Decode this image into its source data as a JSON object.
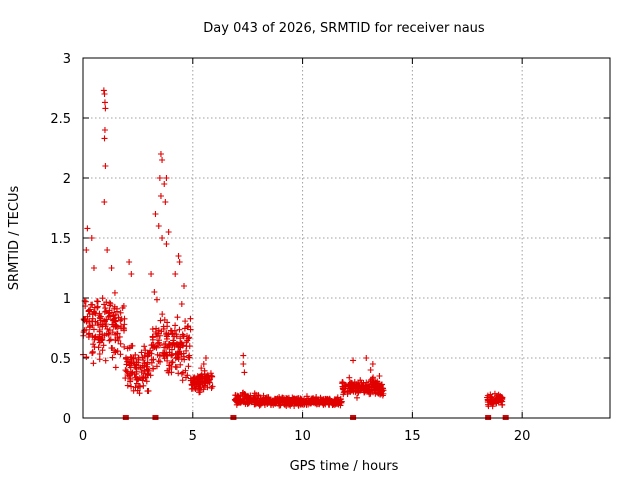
{
  "chart_data": {
    "type": "scatter",
    "title": "Day 043 of 2026, SRMTID for receiver naus",
    "xlabel": "GPS time / hours",
    "ylabel": "SRMTID / TECUs",
    "xlim": [
      0,
      24
    ],
    "ylim": [
      0,
      3
    ],
    "xticks": [
      "0",
      "5",
      "10",
      "15",
      "20"
    ],
    "yticks": [
      "0",
      "0.5",
      "1",
      "1.5",
      "2",
      "2.5",
      "3"
    ],
    "grid": true,
    "marker": "plus",
    "color": "#e00000",
    "segments": [
      {
        "x0": 0.0,
        "x1": 1.9,
        "base": 0.75,
        "spread": 0.4
      },
      {
        "x0": 1.9,
        "x1": 3.1,
        "base": 0.42,
        "spread": 0.25
      },
      {
        "x0": 3.1,
        "x1": 4.9,
        "base": 0.6,
        "spread": 0.4
      },
      {
        "x0": 4.9,
        "x1": 5.9,
        "base": 0.3,
        "spread": 0.12
      },
      {
        "x0": 6.9,
        "x1": 8.0,
        "base": 0.16,
        "spread": 0.07
      },
      {
        "x0": 8.0,
        "x1": 11.8,
        "base": 0.14,
        "spread": 0.05
      },
      {
        "x0": 11.8,
        "x1": 13.7,
        "base": 0.25,
        "spread": 0.1
      },
      {
        "x0": 18.4,
        "x1": 19.1,
        "base": 0.15,
        "spread": 0.07
      }
    ],
    "spikes": [
      {
        "x": 0.95,
        "y": 2.73
      },
      {
        "x": 0.98,
        "y": 2.7
      },
      {
        "x": 1.0,
        "y": 2.63
      },
      {
        "x": 1.02,
        "y": 2.58
      },
      {
        "x": 1.0,
        "y": 2.4
      },
      {
        "x": 0.98,
        "y": 2.33
      },
      {
        "x": 1.02,
        "y": 2.1
      },
      {
        "x": 0.97,
        "y": 1.8
      },
      {
        "x": 0.2,
        "y": 1.58
      },
      {
        "x": 0.4,
        "y": 1.5
      },
      {
        "x": 0.15,
        "y": 1.4
      },
      {
        "x": 0.5,
        "y": 1.25
      },
      {
        "x": 1.1,
        "y": 1.4
      },
      {
        "x": 1.3,
        "y": 1.25
      },
      {
        "x": 3.55,
        "y": 2.2
      },
      {
        "x": 3.6,
        "y": 2.15
      },
      {
        "x": 3.5,
        "y": 2.0
      },
      {
        "x": 3.8,
        "y": 2.0
      },
      {
        "x": 3.7,
        "y": 1.95
      },
      {
        "x": 3.55,
        "y": 1.85
      },
      {
        "x": 3.75,
        "y": 1.8
      },
      {
        "x": 3.3,
        "y": 1.7
      },
      {
        "x": 3.45,
        "y": 1.6
      },
      {
        "x": 3.6,
        "y": 1.5
      },
      {
        "x": 3.9,
        "y": 1.55
      },
      {
        "x": 3.8,
        "y": 1.45
      },
      {
        "x": 4.35,
        "y": 1.35
      },
      {
        "x": 4.4,
        "y": 1.3
      },
      {
        "x": 4.2,
        "y": 1.2
      },
      {
        "x": 2.1,
        "y": 1.3
      },
      {
        "x": 2.2,
        "y": 1.2
      },
      {
        "x": 3.1,
        "y": 1.2
      },
      {
        "x": 3.25,
        "y": 1.05
      },
      {
        "x": 4.6,
        "y": 1.1
      },
      {
        "x": 4.5,
        "y": 0.95
      },
      {
        "x": 7.3,
        "y": 0.52
      },
      {
        "x": 7.3,
        "y": 0.45
      },
      {
        "x": 7.35,
        "y": 0.38
      },
      {
        "x": 12.3,
        "y": 0.48
      },
      {
        "x": 12.9,
        "y": 0.5
      },
      {
        "x": 13.2,
        "y": 0.45
      },
      {
        "x": 13.1,
        "y": 0.4
      },
      {
        "x": 13.5,
        "y": 0.35
      },
      {
        "x": 5.6,
        "y": 0.5
      },
      {
        "x": 5.5,
        "y": 0.45
      }
    ],
    "baseline_markers": [
      1.95,
      3.3,
      6.85,
      12.3,
      18.45,
      19.25
    ]
  }
}
